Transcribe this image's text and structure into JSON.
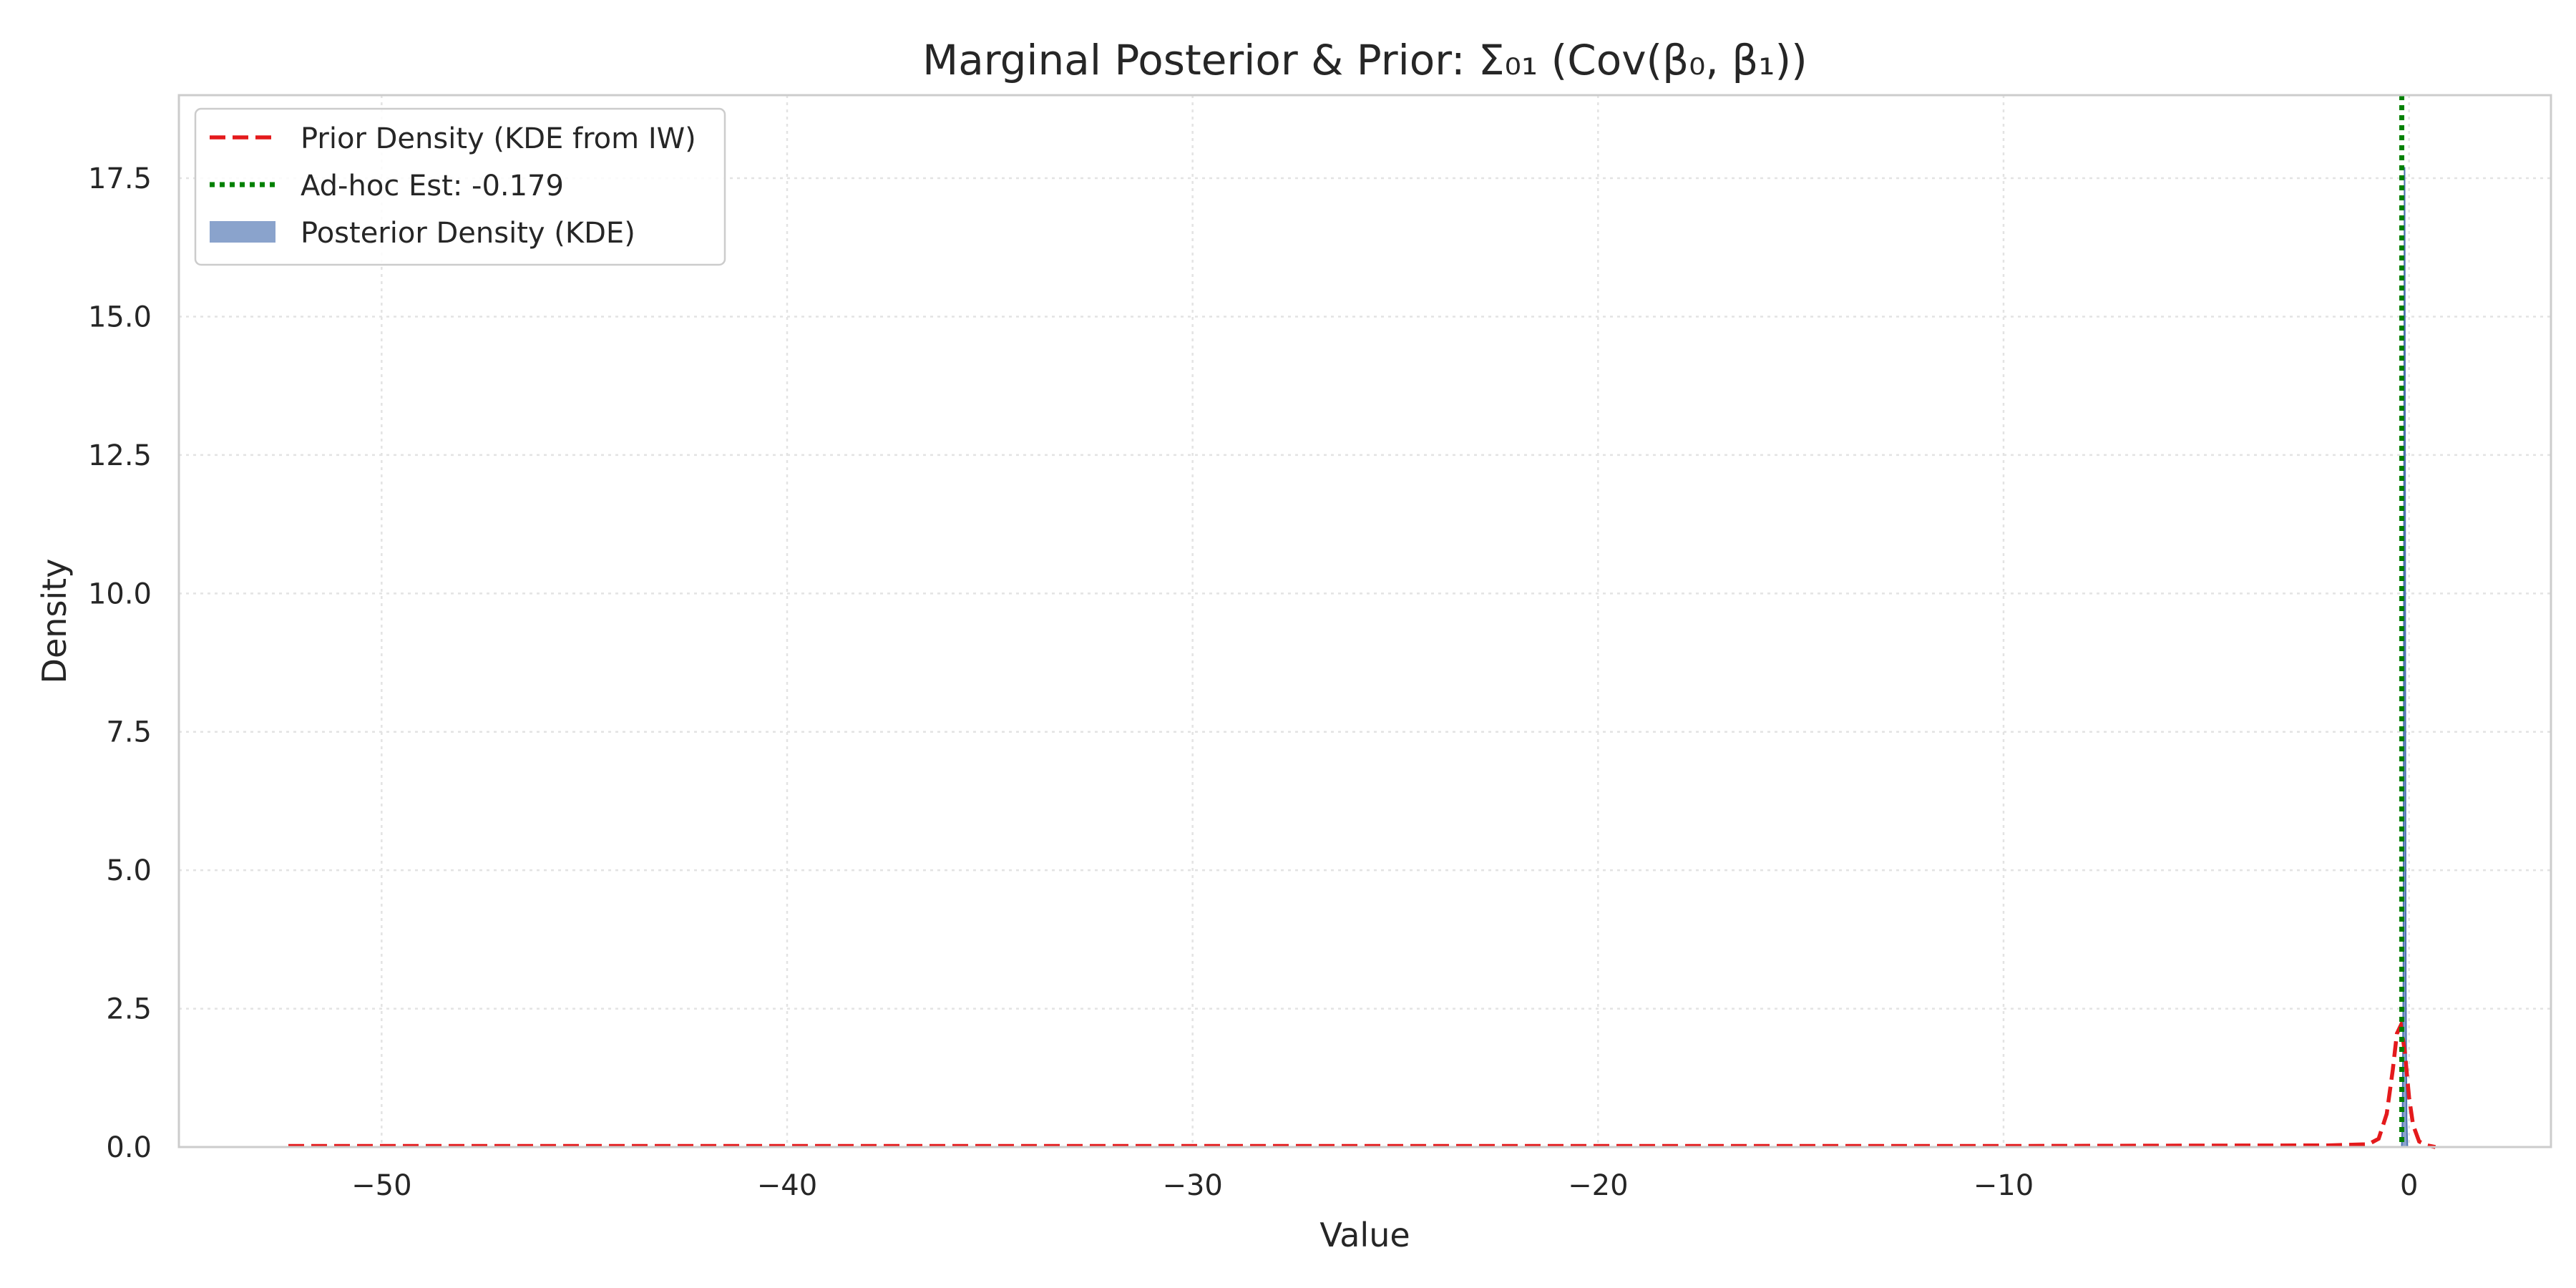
{
  "chart_data": {
    "type": "line",
    "title": "Marginal Posterior & Prior: Σ₀₁ (Cov(β₀, β₁))",
    "xlabel": "Value",
    "ylabel": "Density",
    "xlim": [
      -55,
      3.5
    ],
    "ylim": [
      0,
      19
    ],
    "xticks": [
      -50,
      -40,
      -30,
      -20,
      -10,
      0
    ],
    "xtick_labels": [
      "−50",
      "−40",
      "−30",
      "−20",
      "−10",
      "0"
    ],
    "yticks": [
      0,
      2.5,
      5,
      7.5,
      10,
      12.5,
      15,
      17.5
    ],
    "ytick_labels": [
      "0.0",
      "2.5",
      "5.0",
      "7.5",
      "10.0",
      "12.5",
      "15.0",
      "17.5"
    ],
    "grid": true,
    "legend_position": "top-left",
    "series": [
      {
        "name": "Prior Density (KDE from IW)",
        "style": "dashed",
        "color": "#e41a1c",
        "x": [
          -52.3,
          -40,
          -30,
          -20,
          -10,
          -2,
          -1,
          -0.75,
          -0.55,
          -0.4,
          -0.3,
          -0.2,
          -0.1,
          0,
          0.1,
          0.25,
          0.45,
          0.65
        ],
        "y": [
          0.02,
          0.02,
          0.02,
          0.02,
          0.02,
          0.03,
          0.05,
          0.15,
          0.6,
          1.4,
          2.05,
          2.2,
          1.7,
          0.9,
          0.4,
          0.1,
          0.03,
          0.0
        ]
      },
      {
        "name": "Ad-hoc Est: -0.179",
        "style": "dotted",
        "color": "#008000",
        "x_value": -0.179
      },
      {
        "name": "Posterior Density (KDE)",
        "style": "filled",
        "color": "#4c72b0",
        "x": [
          -0.18,
          -0.16,
          -0.14,
          -0.13,
          -0.12,
          -0.11,
          -0.1,
          -0.09,
          -0.08,
          -0.06,
          -0.04
        ],
        "y": [
          0,
          0.5,
          3.0,
          8.0,
          14.0,
          17.7,
          14.0,
          8.0,
          3.0,
          0.5,
          0
        ]
      }
    ]
  }
}
